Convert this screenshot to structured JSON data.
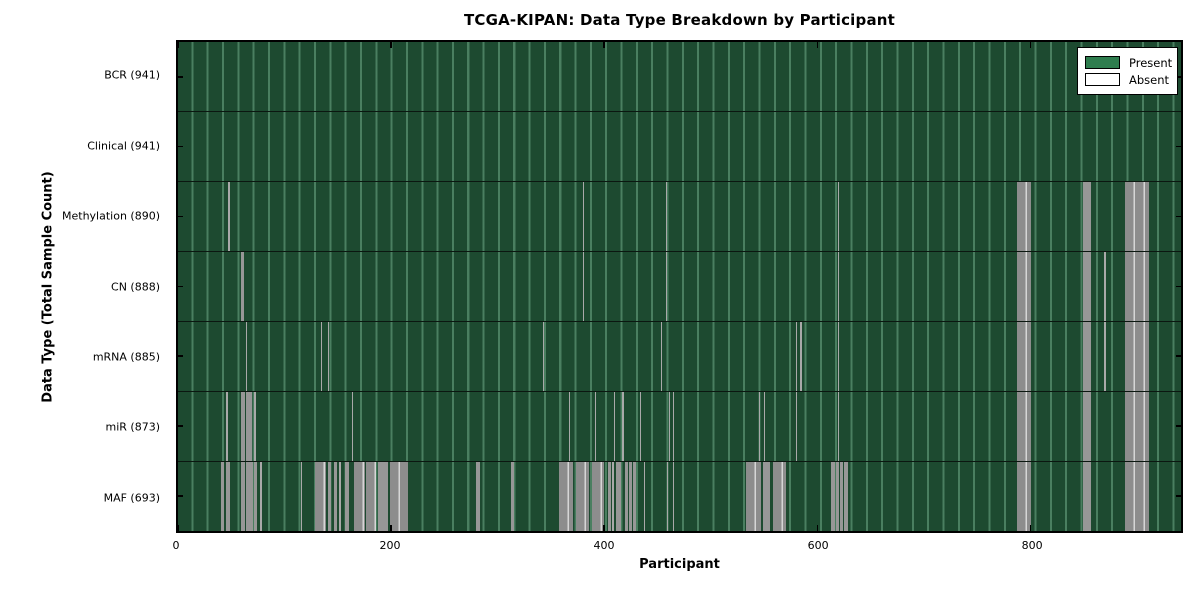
{
  "chart_data": {
    "type": "heatmap",
    "title": "TCGA-KIPAN: Data Type Breakdown by Participant",
    "xlabel": "Participant",
    "ylabel": "Data Type (Total Sample Count)",
    "xlim": [
      0,
      941
    ],
    "x_ticks": [
      0,
      200,
      400,
      600,
      800
    ],
    "grid": "cell-edge moire lines, black row separators",
    "legend": {
      "position": "upper right",
      "entries": [
        {
          "label": "Present",
          "color": "#2e7d4e"
        },
        {
          "label": "Absent",
          "color": "#ffffff"
        }
      ]
    },
    "colors": {
      "present_fill": "#2e7d4e",
      "absent_fill": "#ffffff",
      "plot_base_green": "#1d4a30",
      "cell_edge_light_green": "#6eaa87",
      "absent_rendered_gray": "#979797",
      "absent_highlight": "#d6d6d6",
      "axis": "#000000"
    },
    "rows": [
      {
        "data_type": "BCR",
        "total": 941,
        "label": "BCR (941)",
        "absent_runs": []
      },
      {
        "data_type": "Clinical",
        "total": 941,
        "label": "Clinical (941)",
        "absent_runs": []
      },
      {
        "data_type": "Methylation",
        "total": 890,
        "label": "Methylation (890)",
        "absent_runs": [
          [
            47,
            49
          ],
          [
            380,
            381
          ],
          [
            458,
            459
          ],
          [
            619,
            620
          ],
          [
            787,
            800
          ],
          [
            849,
            857
          ],
          [
            888,
            911
          ]
        ]
      },
      {
        "data_type": "CN",
        "total": 888,
        "label": "CN (888)",
        "absent_runs": [
          [
            59,
            62
          ],
          [
            380,
            381
          ],
          [
            458,
            459
          ],
          [
            619,
            620
          ],
          [
            787,
            800
          ],
          [
            849,
            857
          ],
          [
            869,
            871
          ],
          [
            888,
            911
          ]
        ]
      },
      {
        "data_type": "mRNA",
        "total": 885,
        "label": "mRNA (885)",
        "absent_runs": [
          [
            64,
            65
          ],
          [
            134,
            135
          ],
          [
            141,
            142
          ],
          [
            342,
            343
          ],
          [
            453,
            454
          ],
          [
            580,
            581
          ],
          [
            584,
            585
          ],
          [
            619,
            620
          ],
          [
            787,
            800
          ],
          [
            849,
            857
          ],
          [
            869,
            871
          ],
          [
            888,
            911
          ]
        ]
      },
      {
        "data_type": "miR",
        "total": 873,
        "label": "miR (873)",
        "absent_runs": [
          [
            45,
            47
          ],
          [
            59,
            63
          ],
          [
            64,
            69
          ],
          [
            71,
            73
          ],
          [
            163,
            164
          ],
          [
            367,
            368
          ],
          [
            391,
            392
          ],
          [
            409,
            410
          ],
          [
            417,
            418
          ],
          [
            433,
            434
          ],
          [
            461,
            462
          ],
          [
            464,
            465
          ],
          [
            545,
            546
          ],
          [
            550,
            551
          ],
          [
            580,
            581
          ],
          [
            619,
            620
          ],
          [
            787,
            800
          ],
          [
            849,
            857
          ],
          [
            888,
            911
          ]
        ]
      },
      {
        "data_type": "MAF",
        "total": 693,
        "label": "MAF (693)",
        "absent_runs": [
          [
            40,
            43
          ],
          [
            45,
            49
          ],
          [
            59,
            63
          ],
          [
            64,
            70
          ],
          [
            71,
            74
          ],
          [
            77,
            79
          ],
          [
            115,
            116
          ],
          [
            129,
            139
          ],
          [
            141,
            144
          ],
          [
            146,
            149
          ],
          [
            151,
            153
          ],
          [
            157,
            160
          ],
          [
            165,
            175
          ],
          [
            176,
            186
          ],
          [
            188,
            197
          ],
          [
            199,
            216
          ],
          [
            280,
            283
          ],
          [
            312,
            315
          ],
          [
            357,
            371
          ],
          [
            373,
            386
          ],
          [
            388,
            400
          ],
          [
            403,
            406
          ],
          [
            407,
            409
          ],
          [
            411,
            416
          ],
          [
            419,
            422
          ],
          [
            423,
            426
          ],
          [
            427,
            430
          ],
          [
            437,
            438
          ],
          [
            459,
            460
          ],
          [
            464,
            465
          ],
          [
            533,
            547
          ],
          [
            549,
            555
          ],
          [
            558,
            570
          ],
          [
            613,
            616
          ],
          [
            617,
            620
          ],
          [
            621,
            624
          ],
          [
            625,
            629
          ],
          [
            787,
            800
          ],
          [
            849,
            857
          ],
          [
            888,
            911
          ]
        ]
      }
    ]
  }
}
